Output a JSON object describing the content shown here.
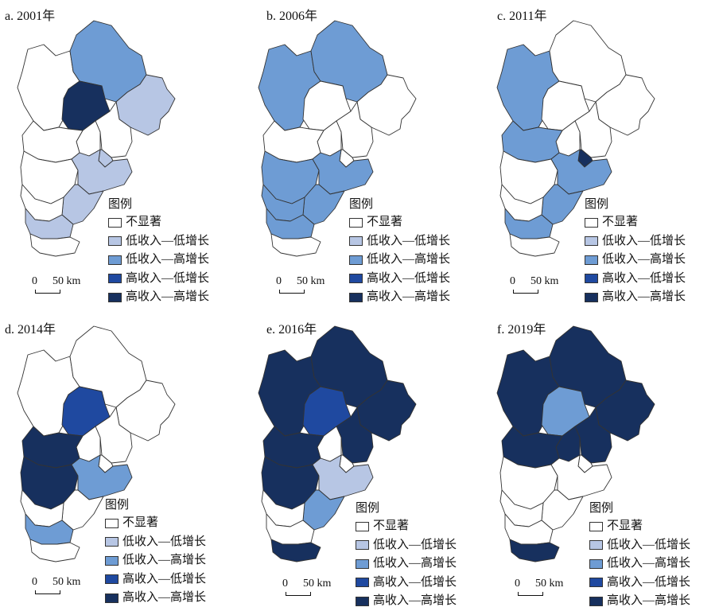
{
  "colors": {
    "not_significant": "#ffffff",
    "low_low": "#b7c6e4",
    "low_high": "#6e9cd4",
    "high_low": "#1f49a0",
    "high_high": "#17305e",
    "border": "#333333"
  },
  "legend": {
    "title": "图例",
    "items": [
      {
        "label": "不显著",
        "key": "not_significant"
      },
      {
        "label": "低收入—低增长",
        "key": "low_low"
      },
      {
        "label": "低收入—高增长",
        "key": "low_high"
      },
      {
        "label": "高收入—低增长",
        "key": "high_low"
      },
      {
        "label": "高收入—高增长",
        "key": "high_high"
      }
    ]
  },
  "scale": {
    "zero": "0",
    "value": "50 km"
  },
  "panels": [
    {
      "title": "a. 2001年",
      "fills": {
        "r1": "not_significant",
        "r2": "low_high",
        "r3": "high_high",
        "r4": "low_low",
        "r5": "not_significant",
        "r6": "not_significant",
        "r7": "low_low",
        "r8": "not_significant",
        "r9": "not_significant",
        "r10": "low_low",
        "r11": "low_low",
        "r12": "not_significant",
        "r13": "low_low",
        "r14": "not_significant"
      }
    },
    {
      "title": "b. 2006年",
      "fills": {
        "r1": "low_high",
        "r2": "low_high",
        "r3": "not_significant",
        "r4": "not_significant",
        "r5": "not_significant",
        "r6": "not_significant",
        "r7": "not_significant",
        "r8": "not_significant",
        "r9": "low_high",
        "r10": "low_high",
        "r11": "low_high",
        "r12": "low_high",
        "r13": "low_high",
        "r14": "not_significant"
      }
    },
    {
      "title": "c. 2011年",
      "fills": {
        "r1": "low_high",
        "r2": "not_significant",
        "r3": "not_significant",
        "r4": "not_significant",
        "r5": "not_significant",
        "r6": "not_significant",
        "r7": "high_high",
        "r8": "low_high",
        "r9": "not_significant",
        "r10": "low_high",
        "r11": "low_high",
        "r12": "not_significant",
        "r13": "low_high",
        "r14": "not_significant"
      }
    },
    {
      "title": "d. 2014年",
      "fills": {
        "r1": "not_significant",
        "r2": "not_significant",
        "r3": "high_low",
        "r4": "not_significant",
        "r5": "not_significant",
        "r6": "not_significant",
        "r7": "not_significant",
        "r8": "high_high",
        "r9": "high_high",
        "r10": "low_high",
        "r11": "not_significant",
        "r12": "not_significant",
        "r13": "low_high",
        "r14": "not_significant"
      }
    },
    {
      "title": "e. 2016年",
      "fills": {
        "r1": "high_high",
        "r2": "high_high",
        "r3": "high_low",
        "r4": "high_high",
        "r5": "high_high",
        "r6": "not_significant",
        "r7": "not_significant",
        "r8": "high_high",
        "r9": "high_high",
        "r10": "low_low",
        "r11": "low_high",
        "r12": "not_significant",
        "r13": "not_significant",
        "r14": "high_high"
      }
    },
    {
      "title": "f. 2019年",
      "fills": {
        "r1": "high_high",
        "r2": "high_high",
        "r3": "low_high",
        "r4": "high_high",
        "r5": "high_high",
        "r6": "high_high",
        "r7": "not_significant",
        "r8": "high_high",
        "r9": "not_significant",
        "r10": "not_significant",
        "r11": "not_significant",
        "r12": "not_significant",
        "r13": "not_significant",
        "r14": "high_high"
      }
    }
  ]
}
